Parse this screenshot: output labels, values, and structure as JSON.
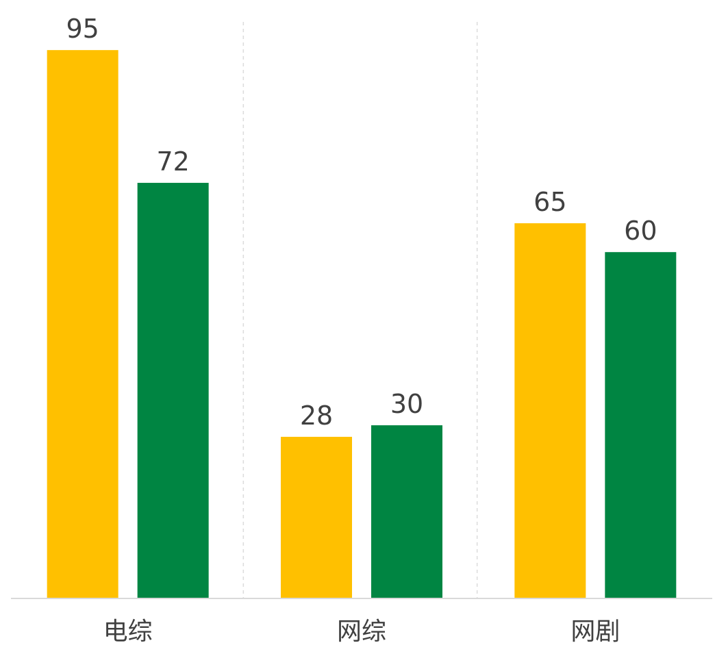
{
  "chart_data": {
    "type": "bar",
    "categories": [
      "电综",
      "网综",
      "网剧"
    ],
    "series": [
      {
        "values": [
          95,
          28,
          65
        ],
        "color": "#FFC000"
      },
      {
        "values": [
          72,
          30,
          60
        ],
        "color": "#008542"
      }
    ],
    "title": "",
    "xlabel": "",
    "ylabel": "",
    "ylim": [
      0,
      100
    ],
    "grid": "vertical dashed separators",
    "legend": "none",
    "data_labels": true
  }
}
